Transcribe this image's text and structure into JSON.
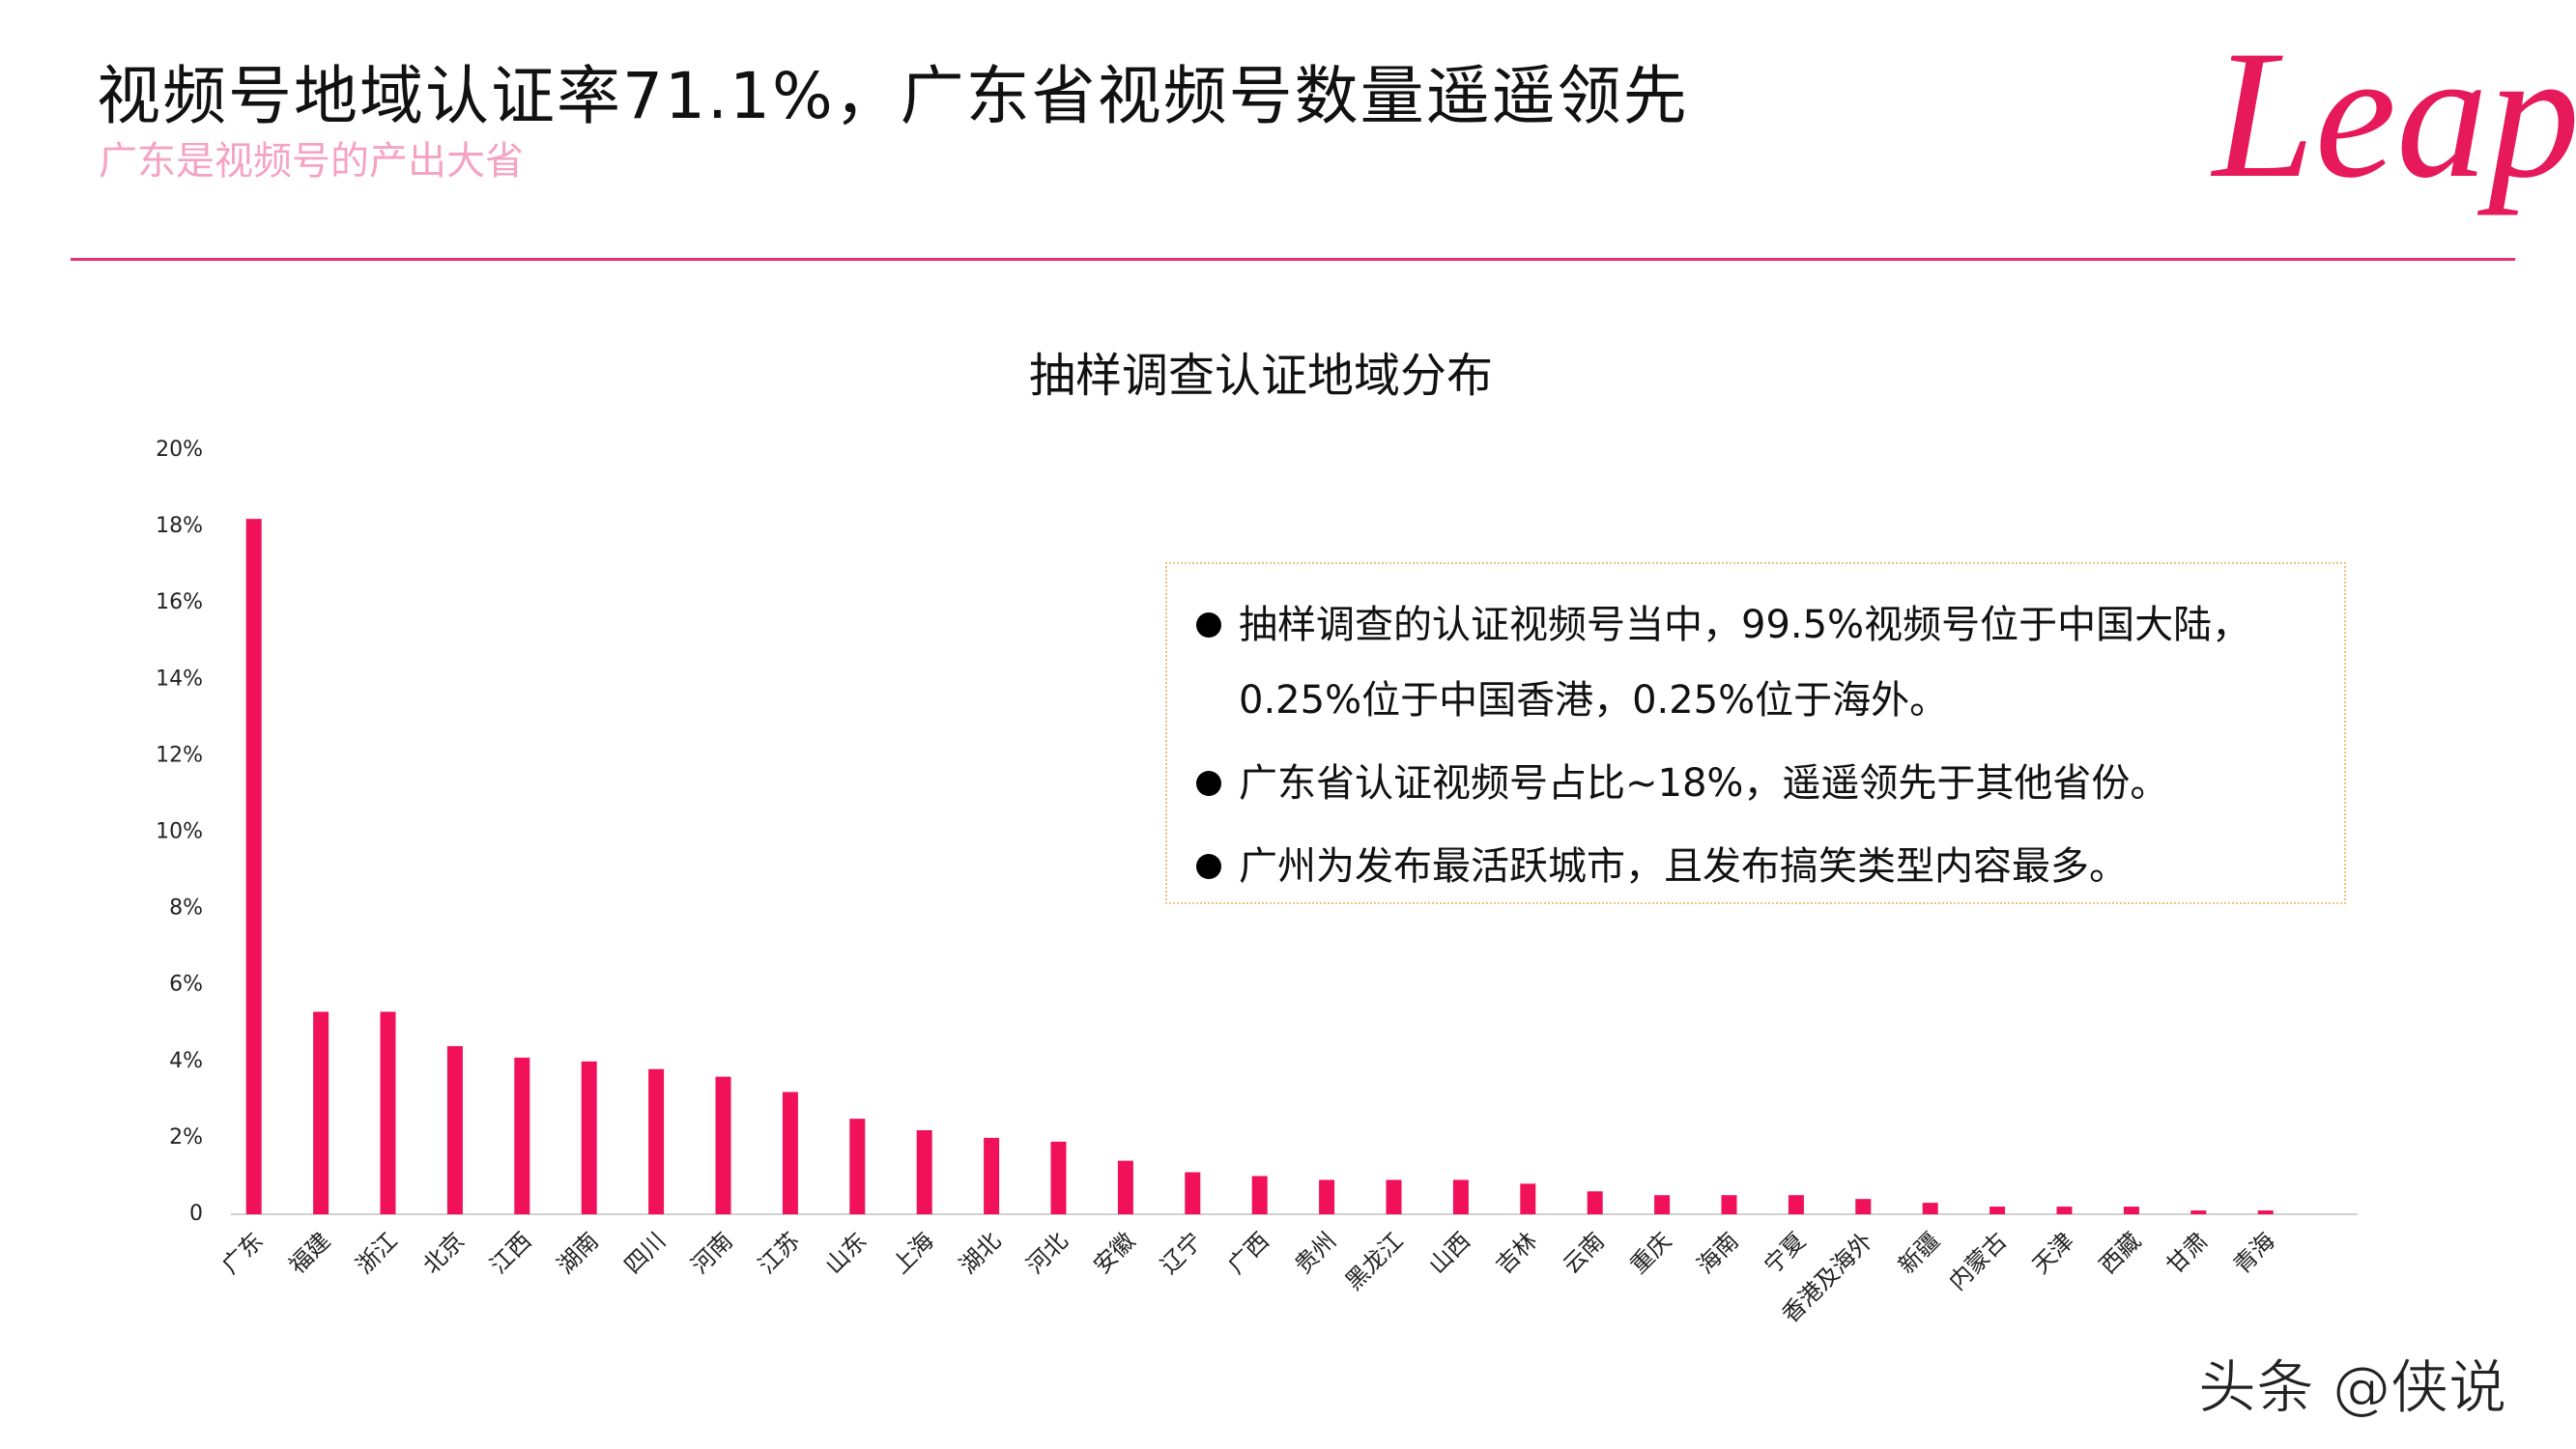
{
  "header": {
    "title": "视频号地域认证率71.1%，广东省视频号数量遥遥领先",
    "subtitle": "广东是视频号的产出大省",
    "logo": "Leap"
  },
  "chart_data": {
    "type": "bar",
    "title": "抽样调查认证地域分布",
    "categories": [
      "广东",
      "福建",
      "浙江",
      "北京",
      "江西",
      "湖南",
      "四川",
      "河南",
      "江苏",
      "山东",
      "上海",
      "湖北",
      "河北",
      "安徽",
      "辽宁",
      "广西",
      "贵州",
      "黑龙江",
      "山西",
      "吉林",
      "云南",
      "重庆",
      "海南",
      "宁夏",
      "香港及海外",
      "新疆",
      "内蒙古",
      "天津",
      "西藏",
      "甘肃",
      "青海"
    ],
    "values": [
      18.2,
      5.3,
      5.3,
      4.4,
      4.1,
      4.0,
      3.8,
      3.6,
      3.2,
      2.5,
      2.2,
      2.0,
      1.9,
      1.4,
      1.1,
      1.0,
      0.9,
      0.9,
      0.9,
      0.8,
      0.6,
      0.5,
      0.5,
      0.5,
      0.4,
      0.3,
      0.2,
      0.2,
      0.2,
      0.1,
      0.1
    ],
    "color": "#f0115a",
    "ylim": [
      0,
      20
    ],
    "yticks": [
      0,
      {
        "value": 2,
        "label": "2%"
      },
      {
        "value": 4,
        "label": "4%"
      },
      {
        "value": 6,
        "label": "6%"
      },
      {
        "value": 8,
        "label": "8%"
      },
      {
        "value": 10,
        "label": "10%"
      },
      {
        "value": 12,
        "label": "12%"
      },
      {
        "value": 14,
        "label": "14%"
      },
      {
        "value": 16,
        "label": "16%"
      },
      {
        "value": 18,
        "label": "18%"
      },
      {
        "value": 20,
        "label": "20%"
      }
    ],
    "grid": false
  },
  "notes": [
    "抽样调查的认证视频号当中，99.5%视频号位于中国大陆，0.25%位于中国香港，0.25%位于海外。",
    "广东省认证视频号占比~18%，遥遥领先于其他省份。",
    "广州为发布最活跃城市，且发布搞笑类型内容最多。"
  ],
  "watermark": "头条 @侠说"
}
